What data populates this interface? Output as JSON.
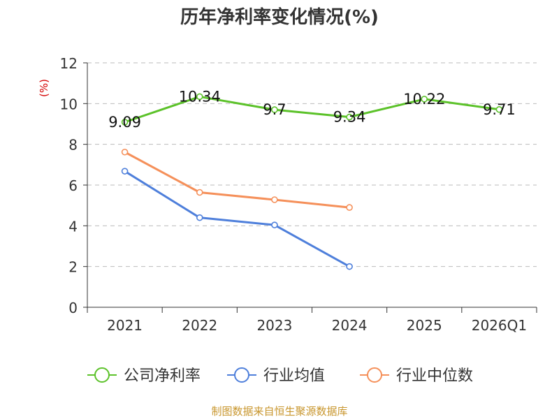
{
  "chart_data": {
    "type": "line",
    "title": "历年净利率变化情况(%)",
    "ylabel": "(%)",
    "xlabel": "",
    "ylim": [
      0,
      12
    ],
    "yticks": [
      0,
      2,
      4,
      6,
      8,
      10,
      12
    ],
    "categories": [
      "2021",
      "2022",
      "2023",
      "2024",
      "2025",
      "2026Q1"
    ],
    "grid": true,
    "legend_position": "bottom",
    "series": [
      {
        "name": "公司净利率",
        "color": "#5cc22a",
        "values": [
          9.09,
          10.34,
          9.7,
          9.34,
          10.22,
          9.71
        ],
        "labels": [
          "9.09",
          "10.34",
          "9.7",
          "9.34",
          "10.22",
          "9.71"
        ]
      },
      {
        "name": "行业均值",
        "color": "#4e7fdb",
        "values": [
          6.68,
          4.4,
          4.04,
          2.0,
          null,
          null
        ]
      },
      {
        "name": "行业中位数",
        "color": "#f5905a",
        "values": [
          7.62,
          5.64,
          5.28,
          4.9,
          null,
          null
        ]
      }
    ],
    "source": "制图数据来自恒生聚源数据库"
  }
}
